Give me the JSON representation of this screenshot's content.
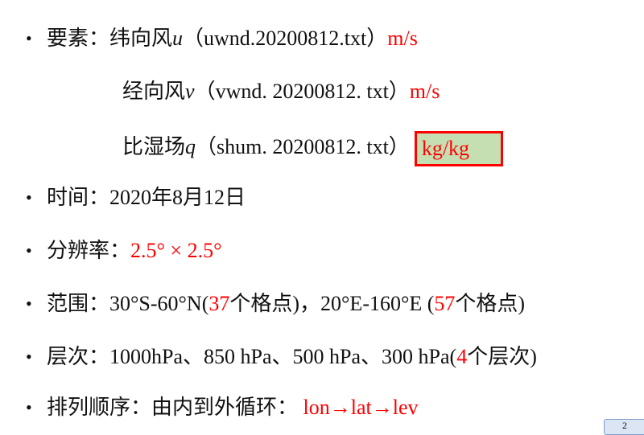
{
  "bullet": "•",
  "items": [
    {
      "label": "要素：",
      "name": "纬向风",
      "var": "u",
      "file": "（uwnd.20200812.txt）",
      "unit": "m/s"
    },
    {
      "name": "经向风",
      "var": "v",
      "file": "（vwnd. 20200812. txt）",
      "unit": "m/s"
    },
    {
      "name": "比湿场",
      "var": "q",
      "file": "（shum. 20200812. txt）",
      "unit": "kg/kg"
    }
  ],
  "time": {
    "label": "时间：",
    "value": "2020年8月12日"
  },
  "resolution": {
    "label": "分辨率：",
    "value": "2.5° × 2.5°"
  },
  "range": {
    "label": "范围：",
    "lat": "30°S-60°N(",
    "lat_n": "37",
    "lat_suffix": "个格点)，20°E-160°E (",
    "lon_n": "57",
    "lon_suffix": "个格点)"
  },
  "levels": {
    "label": "层次：",
    "value": "1000hPa、850 hPa、500 hPa、300 hPa(",
    "n": "4",
    "suffix": "个层次)"
  },
  "order": {
    "label": "排列顺序：由内到外循环：",
    "value": "lon→lat→lev"
  },
  "page_tab": "2",
  "colors": {
    "accent": "#ff0000",
    "highlight": "#c5dfb3"
  }
}
